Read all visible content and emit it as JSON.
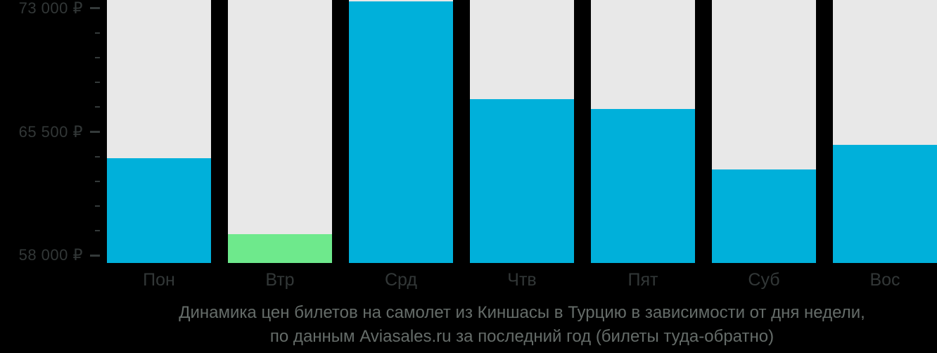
{
  "page": {
    "background": "#000000"
  },
  "caption": {
    "line1": "Динамика цен билетов на самолет из Киншасы в Турцию в зависимости от дня недели,",
    "line2": "по данным Aviasales.ru за последний год (билеты туда-обратно)"
  },
  "chart_data": {
    "type": "bar",
    "title": "Динамика цен билетов на самолет из Киншасы в Турцию в зависимости от дня недели,",
    "subtitle": "по данным Aviasales.ru за последний год (билеты туда-обратно)",
    "categories": [
      "Пон",
      "Втр",
      "Срд",
      "Чтв",
      "Пят",
      "Суб",
      "Вос"
    ],
    "values": [
      63900,
      59300,
      73400,
      67500,
      66900,
      63200,
      64700
    ],
    "currency": "₽",
    "ylim": [
      57500,
      73500
    ],
    "y_axis": {
      "major_ticks": [
        {
          "value": 73000,
          "label": "73 000 ₽"
        },
        {
          "value": 65500,
          "label": "65 500 ₽"
        },
        {
          "value": 58000,
          "label": "58 000 ₽"
        }
      ],
      "minor_tick_step": 1500
    },
    "bar_colors": [
      "#00b0da",
      "#6ee98c",
      "#00b0da",
      "#00b0da",
      "#00b0da",
      "#00b0da",
      "#00b0da"
    ],
    "column_background": "#e8e8e8",
    "legend": "none",
    "grid": "off"
  },
  "colors": {
    "background": "#000000",
    "bar_default": "#00b0da",
    "bar_highlight": "#6ee98c",
    "column_bg": "#e8e8e8",
    "axis_text": "#323737",
    "tick": "#343a3a",
    "caption_text": "#656c69"
  }
}
